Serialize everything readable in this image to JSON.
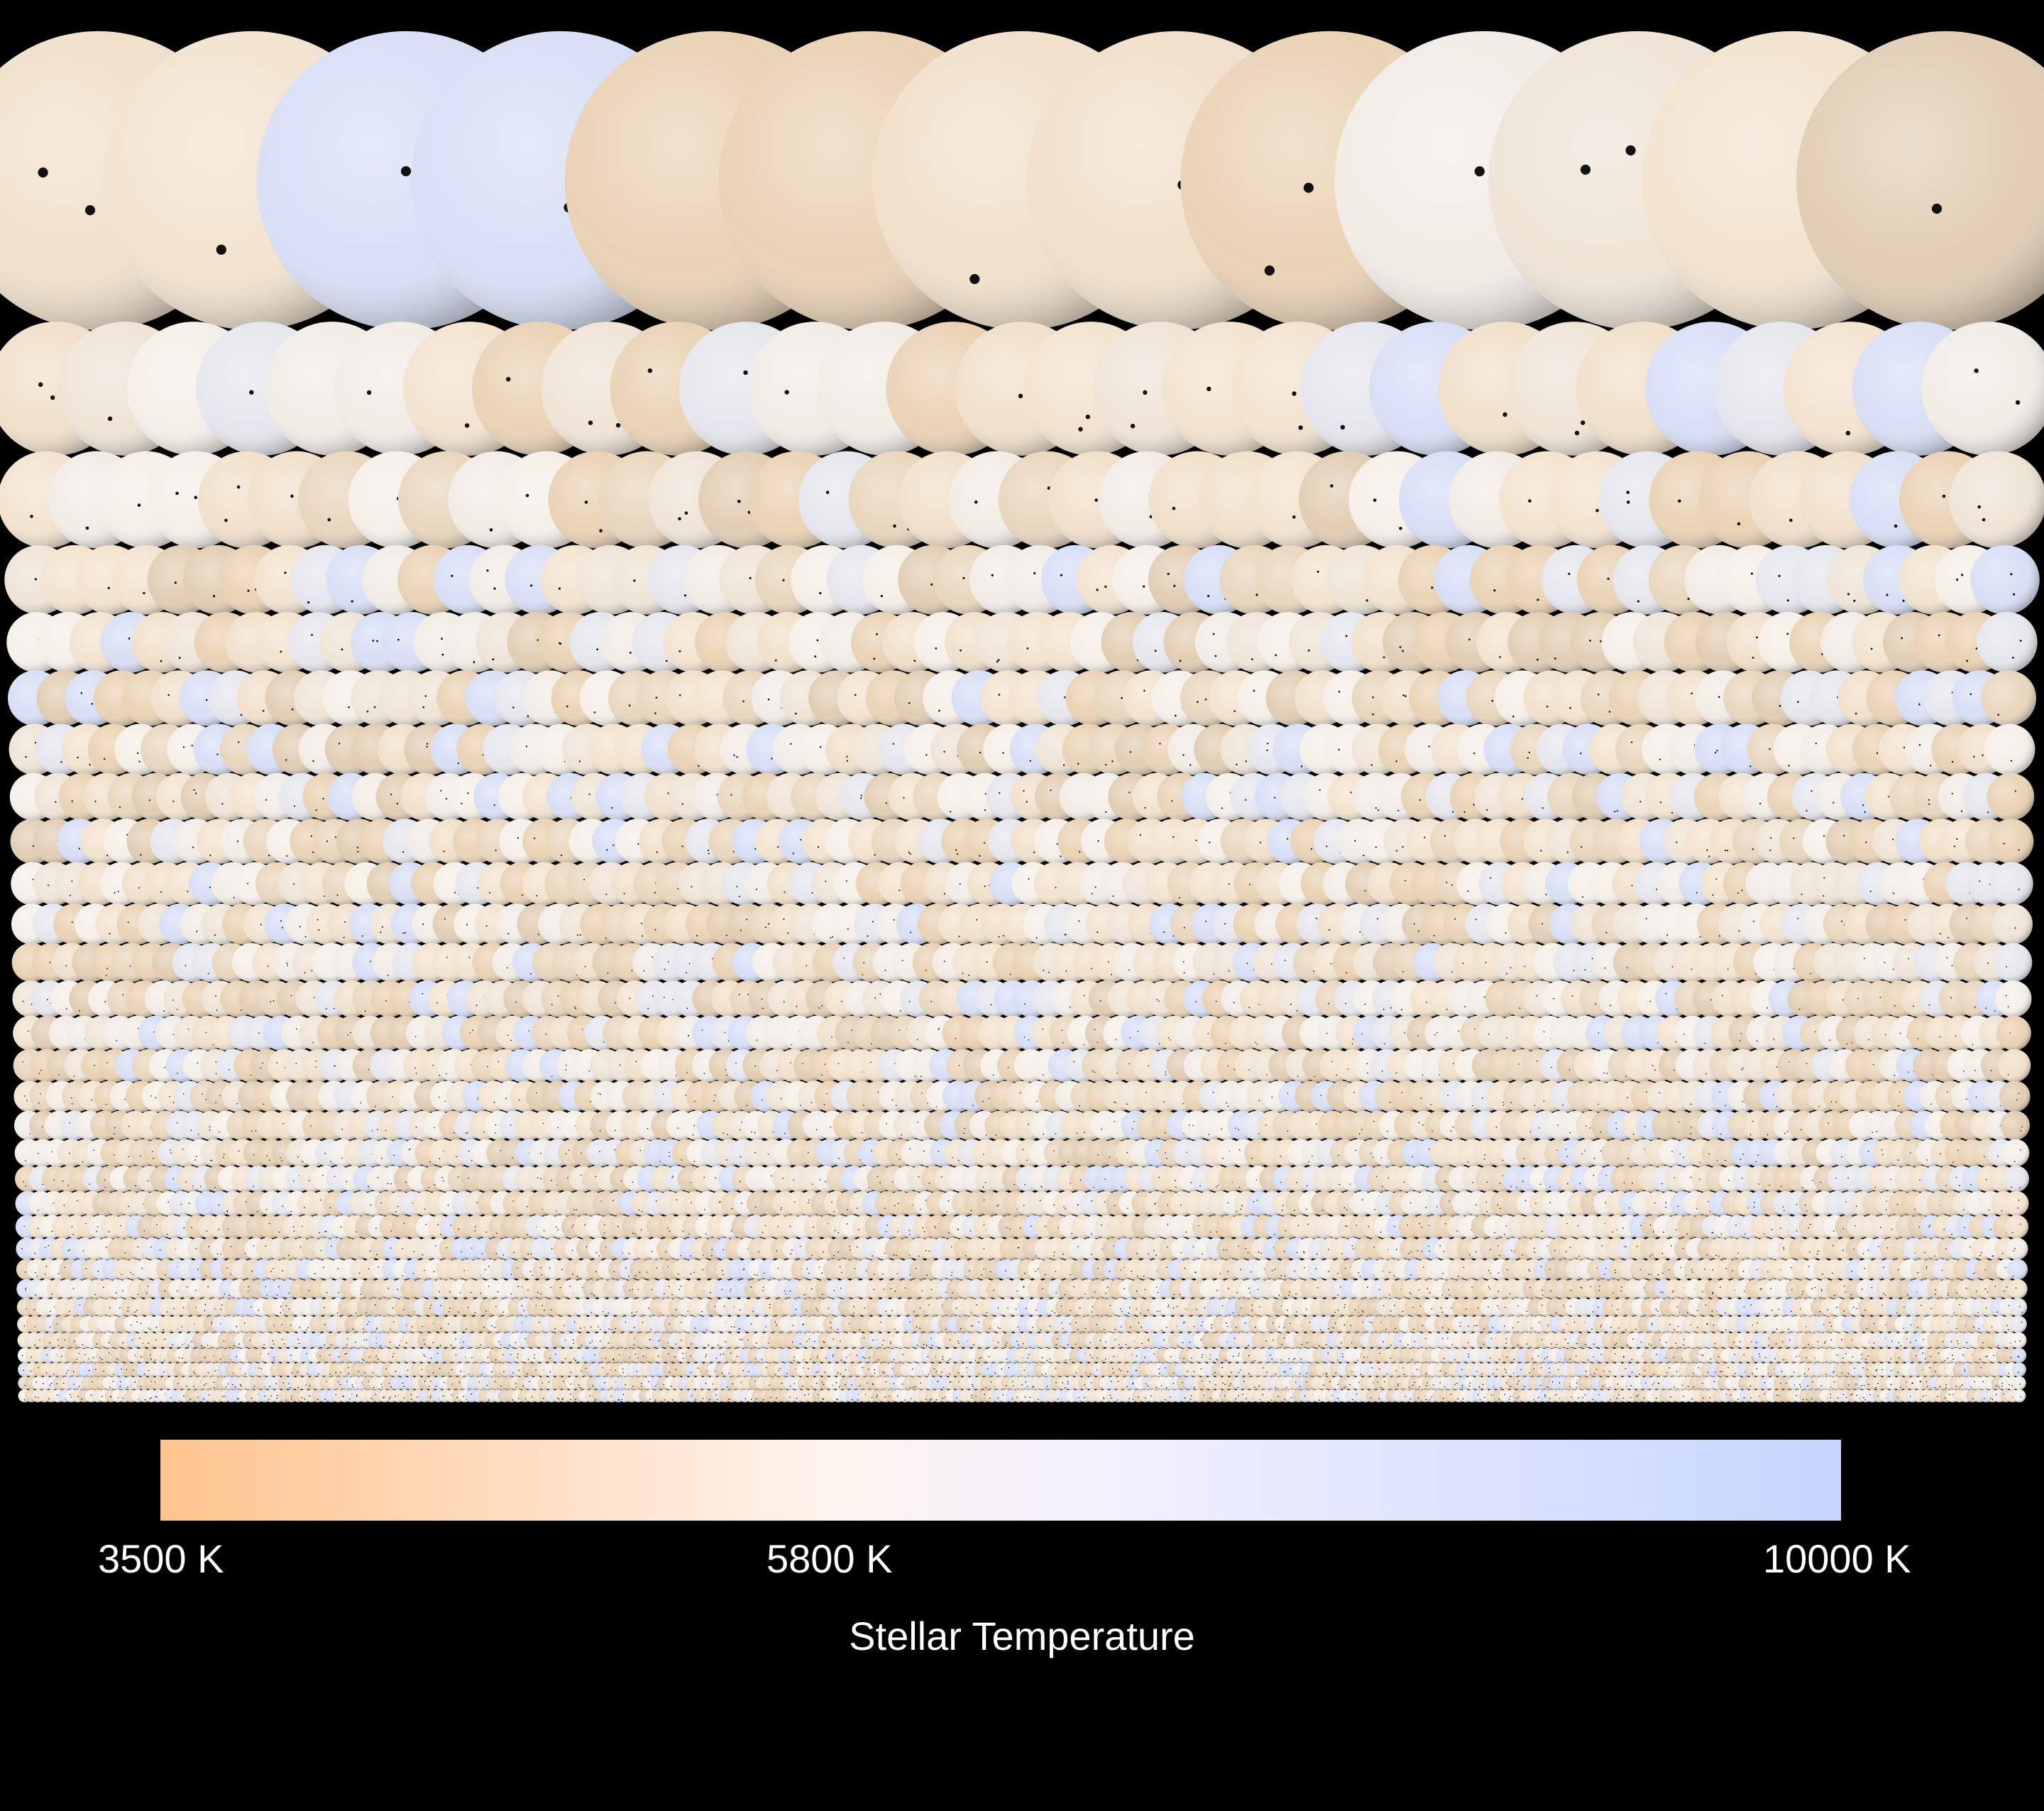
{
  "chart_data": {
    "type": "bubble-grid",
    "description_kind": "stars sized by radius, colored by temperature, each with transit dots",
    "colorbar": {
      "label": "Stellar Temperature",
      "min_label": "3500 K",
      "mid_label": "5800 K",
      "max_label": "10000 K",
      "min_value": 3500,
      "mid_value": 5800,
      "max_value": 10000,
      "colors": [
        "#ffc48e",
        "#fff4ee",
        "#c6d5ff"
      ]
    },
    "rows": [
      {
        "count": 13,
        "size": 1.0
      },
      {
        "count": 29,
        "size": 0.45
      },
      {
        "count": 40,
        "size": 0.33
      },
      {
        "count": 56,
        "size": 0.24
      },
      {
        "count": 64,
        "size": 0.21
      },
      {
        "count": 70,
        "size": 0.19
      },
      {
        "count": 76,
        "size": 0.175
      },
      {
        "count": 82,
        "size": 0.165
      },
      {
        "count": 86,
        "size": 0.155
      },
      {
        "count": 90,
        "size": 0.148
      },
      {
        "count": 95,
        "size": 0.14
      },
      {
        "count": 100,
        "size": 0.13
      },
      {
        "count": 106,
        "size": 0.122
      },
      {
        "count": 112,
        "size": 0.115
      },
      {
        "count": 118,
        "size": 0.108
      },
      {
        "count": 125,
        "size": 0.102
      },
      {
        "count": 132,
        "size": 0.096
      },
      {
        "count": 140,
        "size": 0.09
      },
      {
        "count": 148,
        "size": 0.085
      },
      {
        "count": 156,
        "size": 0.08
      },
      {
        "count": 165,
        "size": 0.075
      },
      {
        "count": 175,
        "size": 0.07
      },
      {
        "count": 186,
        "size": 0.066
      },
      {
        "count": 198,
        "size": 0.062
      },
      {
        "count": 212,
        "size": 0.058
      },
      {
        "count": 226,
        "size": 0.054
      },
      {
        "count": 240,
        "size": 0.05
      },
      {
        "count": 255,
        "size": 0.047
      },
      {
        "count": 270,
        "size": 0.044
      },
      {
        "count": 285,
        "size": 0.041
      },
      {
        "count": 300,
        "size": 0.038
      }
    ]
  }
}
